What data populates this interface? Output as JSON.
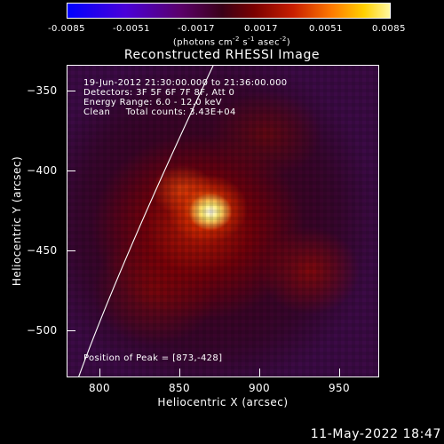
{
  "colorbar": {
    "ticks": [
      "-0.0085",
      "-0.0051",
      "-0.0017",
      "0.0017",
      "0.0051",
      "0.0085"
    ],
    "unit_base": "(photons cm",
    "unit_exp1": "-2",
    "unit_mid1": " s",
    "unit_exp2": "-1",
    "unit_mid2": " asec",
    "unit_exp3": "-2",
    "unit_end": ")"
  },
  "title": "Reconstructed RHESSI Image",
  "info": {
    "line1": "19-Jun-2012 21:30:00.000 to 21:36:00.000",
    "line2": "Detectors: 3F 5F 6F 7F 8F, Att 0",
    "line3": "Energy Range: 6.0 - 12.0 keV",
    "line4": "Clean     Total counts: 3.43E+04"
  },
  "peak": "Position of Peak = [873,-428]",
  "axes": {
    "xlabel": "Heliocentric X (arcsec)",
    "ylabel": "Heliocentric Y (arcsec)",
    "xticks": [
      "800",
      "850",
      "900",
      "950"
    ],
    "yticks": [
      "−350",
      "−400",
      "−450",
      "−500"
    ],
    "xlim": [
      780,
      975
    ],
    "ylim": [
      -530,
      -335
    ]
  },
  "timestamp": "11-May-2022 18:47",
  "colors": {
    "background": "#000000",
    "frame": "#ffffff",
    "limb": "#ffffff"
  }
}
